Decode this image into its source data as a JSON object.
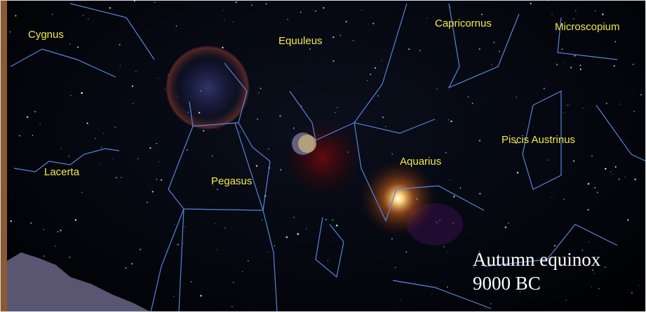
{
  "constellations": [
    "Cygnus",
    "Equuleus",
    "Capricornus",
    "Microscopium",
    "Piscis Austrinus",
    "Aquarius",
    "Lacerta",
    "Pegasus"
  ],
  "caption": {
    "line1": "Autumn equinox",
    "line2": "9000 BC"
  }
}
